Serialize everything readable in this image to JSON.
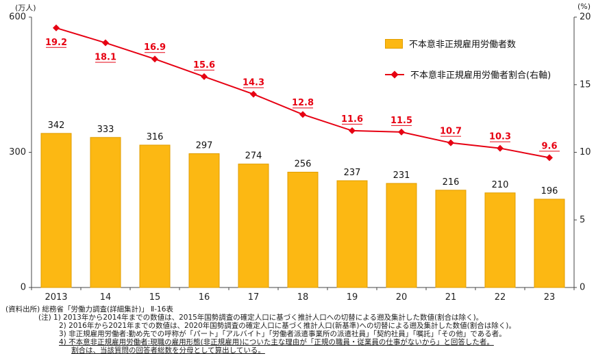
{
  "chart_data": {
    "type": "bar+line",
    "categories": [
      "2013",
      "14",
      "15",
      "16",
      "17",
      "18",
      "19",
      "20",
      "21",
      "22",
      "23"
    ],
    "series": [
      {
        "name": "不本意非正規雇用労働者数",
        "type": "bar",
        "axis": "left",
        "values": [
          342,
          333,
          316,
          297,
          274,
          256,
          237,
          231,
          216,
          210,
          196
        ],
        "color": "#FCB813",
        "border_color": "#E09D00"
      },
      {
        "name": "不本意非正規雇用労働者割合(右軸)",
        "type": "line",
        "axis": "right",
        "values": [
          19.2,
          18.1,
          16.9,
          15.6,
          14.3,
          12.8,
          11.6,
          11.5,
          10.7,
          10.3,
          9.6
        ],
        "color": "#E60012"
      }
    ],
    "left_axis": {
      "unit": "(万人)",
      "min": 0,
      "max": 600,
      "ticks": [
        0,
        300,
        600
      ]
    },
    "right_axis": {
      "unit": "(%)",
      "min": 0,
      "max": 20,
      "ticks": [
        0,
        5,
        10,
        15,
        20
      ]
    },
    "legend_position": "top-right",
    "grid": false
  },
  "notes": {
    "lines": [
      "(資料出所) 総務省「労働力調査(詳細集計)」 Ⅱ-16表",
      "(注) 1) 2013年から2014年までの数値は、2015年国勢調査の確定人口に基づく推計人口への切替による遡及集計した数値(割合は除く)。",
      "2) 2016年から2021年までの数値は、2020年国勢調査の確定人口に基づく推計人口(新基準)への切替による遡及集計した数値(割合は除く)。",
      "3) 非正規雇用労働者:勤め先での呼称が「パート」「アルバイト」「労働者派遣事業所の派遣社員」「契約社員」「嘱託」「その他」である者。",
      "4) 不本意非正規雇用労働者:現職の雇用形態(非正規雇用)についた主な理由が「正規の職員・従業員の仕事がないから」と回答した者。",
      "割合は、当該質問の回答者総数を分母として算出している。"
    ]
  }
}
